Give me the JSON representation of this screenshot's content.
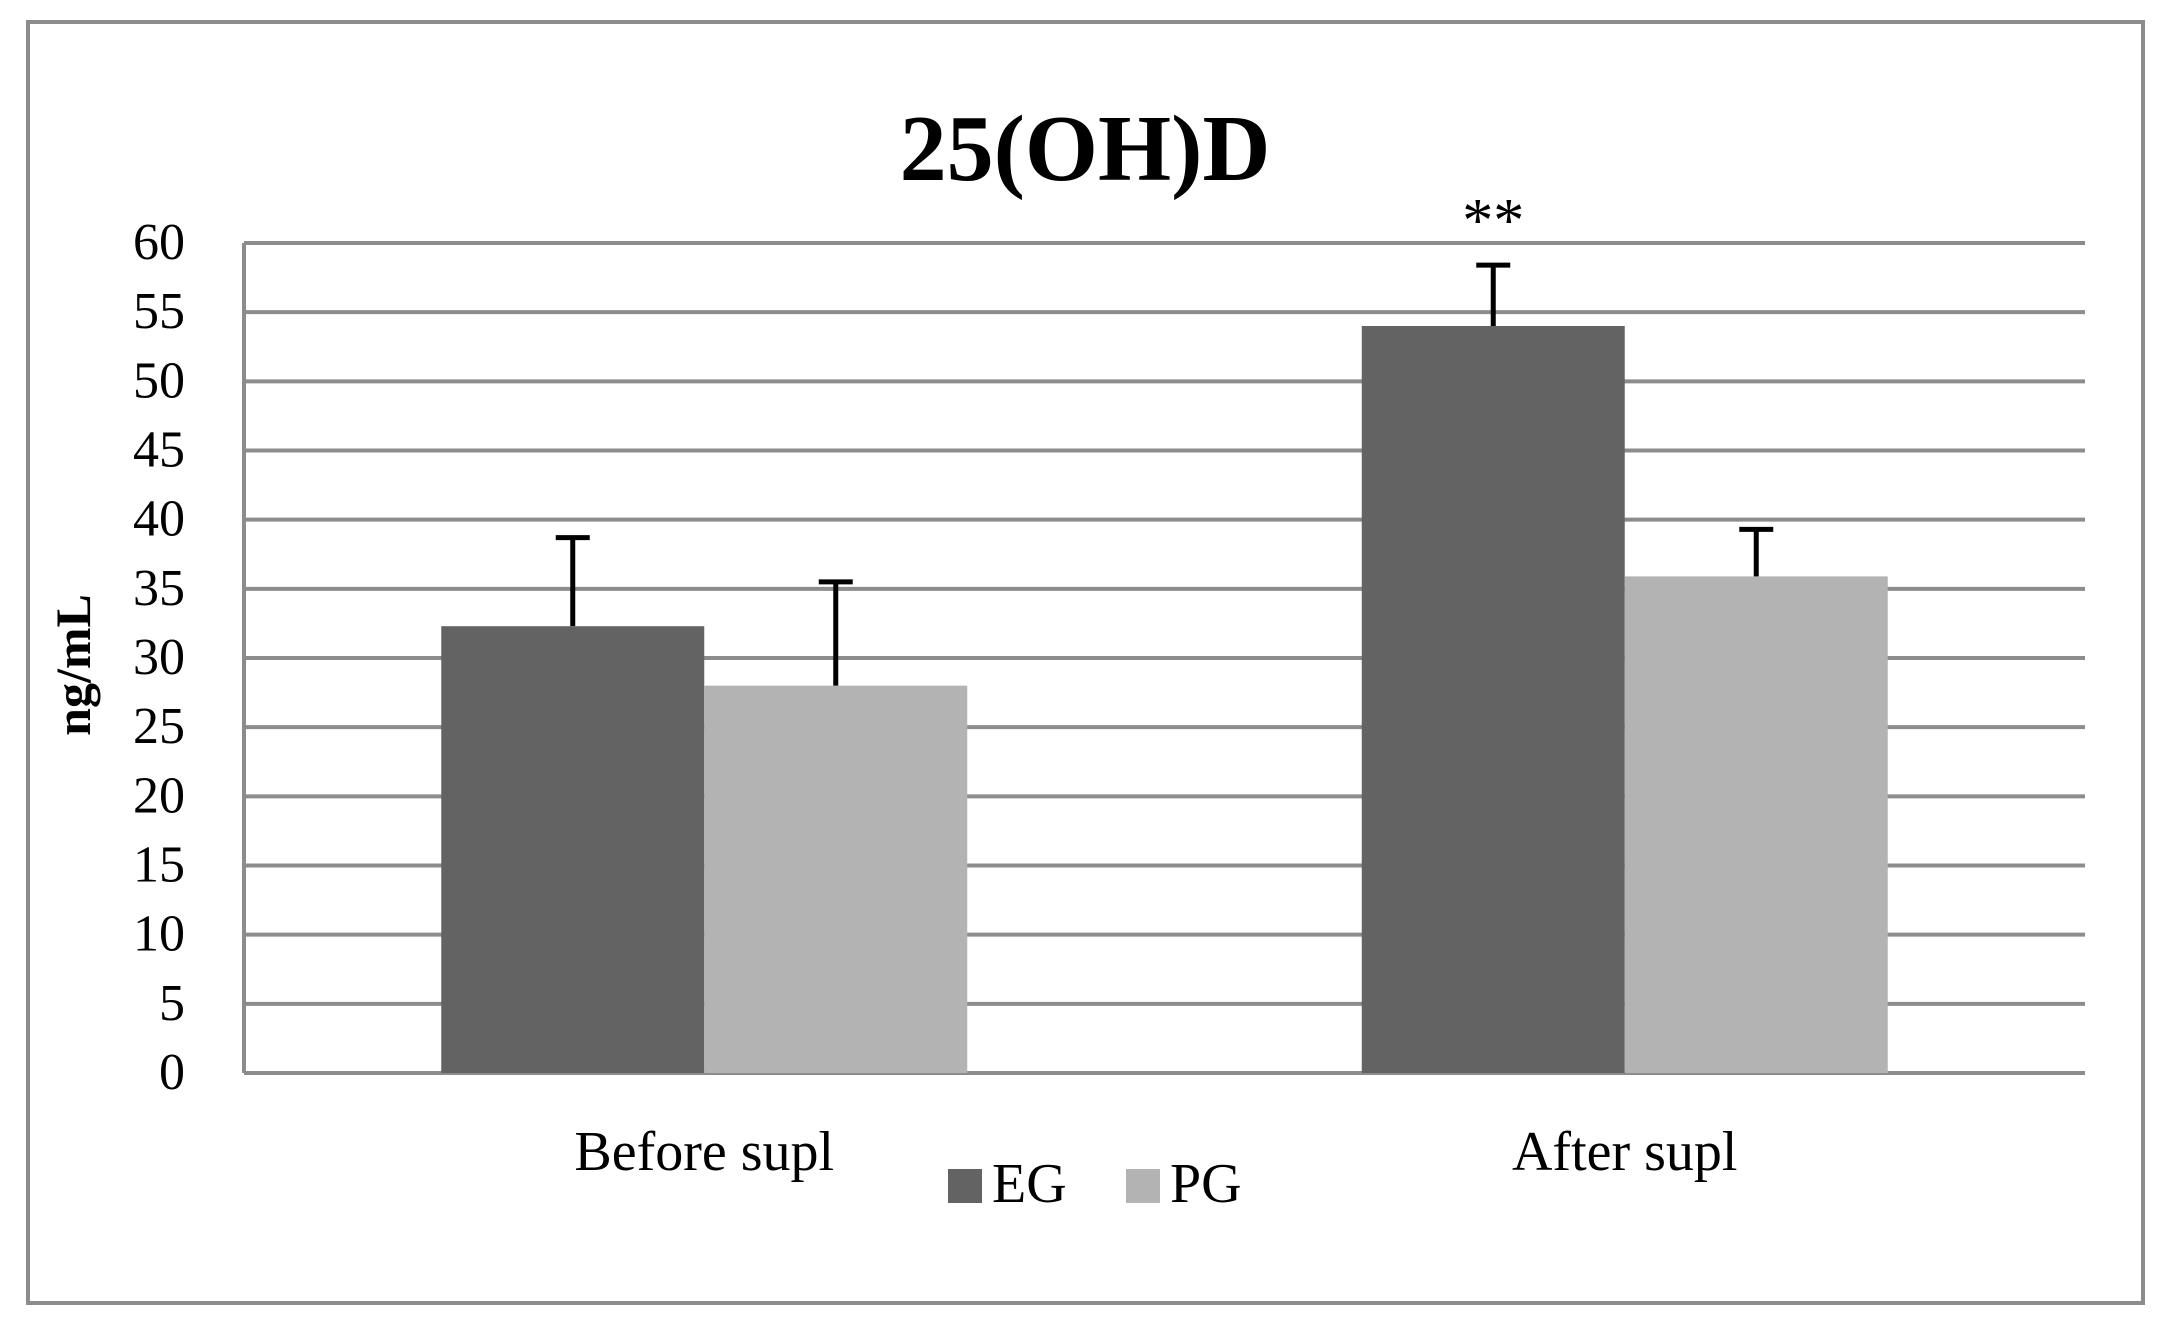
{
  "chart_data": {
    "type": "bar",
    "title": "25(OH)D",
    "xlabel": "",
    "ylabel": "ng/mL",
    "ylim": [
      0,
      60
    ],
    "ytick_step": 5,
    "categories": [
      "Before supl",
      "After supl"
    ],
    "series": [
      {
        "name": "EG",
        "values": [
          32.3,
          54.0
        ],
        "error": [
          6.4,
          4.4
        ],
        "color": "#636363"
      },
      {
        "name": "PG",
        "values": [
          28.0,
          35.9
        ],
        "error": [
          7.5,
          3.4
        ],
        "color": "#b3b3b3"
      }
    ],
    "annotations": [
      {
        "text": "**",
        "category": "After supl",
        "series": "EG"
      }
    ],
    "grid": true,
    "legend_position": "bottom",
    "colors": {
      "gridline": "#8c8c8c",
      "frame": "#8c8c8c",
      "error_bar": "#000000"
    }
  }
}
